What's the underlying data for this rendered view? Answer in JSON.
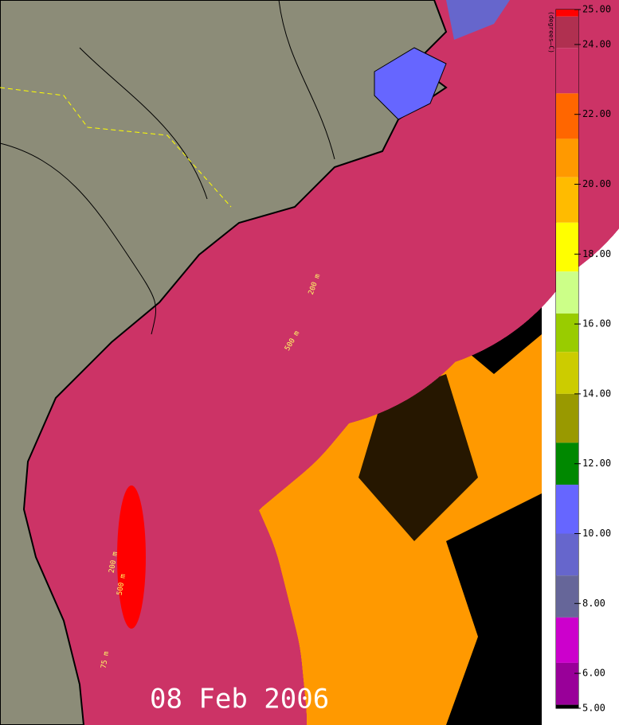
{
  "map": {
    "date": "08 Feb 2006",
    "contour_labels": [
      "200 m",
      "500 m",
      "75 m",
      "200 m",
      "500 m"
    ]
  },
  "colorbar": {
    "title": "(degrees—C)",
    "lim": [
      5,
      25
    ],
    "ticks": [
      {
        "value": 25,
        "label": "25.00"
      },
      {
        "value": 24,
        "label": "24.00"
      },
      {
        "value": 22,
        "label": "22.00"
      },
      {
        "value": 20,
        "label": "20.00"
      },
      {
        "value": 18,
        "label": "18.00"
      },
      {
        "value": 16,
        "label": "16.00"
      },
      {
        "value": 14,
        "label": "14.00"
      },
      {
        "value": 12,
        "label": "12.00"
      },
      {
        "value": 10,
        "label": "10.00"
      },
      {
        "value": 8,
        "label": "8.00"
      },
      {
        "value": 6,
        "label": "6.00"
      },
      {
        "value": 5,
        "label": "5.00"
      }
    ],
    "bins": [
      {
        "from": 24.8,
        "to": 25,
        "color": "#ff0000"
      },
      {
        "from": 23.9,
        "to": 24.8,
        "color": "#b03050"
      },
      {
        "from": 22.6,
        "to": 23.9,
        "color": "#cc3366"
      },
      {
        "from": 21.3,
        "to": 22.6,
        "color": "#ff6600"
      },
      {
        "from": 20.2,
        "to": 21.3,
        "color": "#ff9900"
      },
      {
        "from": 18.9,
        "to": 20.2,
        "color": "#ffbb00"
      },
      {
        "from": 17.5,
        "to": 18.9,
        "color": "#ffff00"
      },
      {
        "from": 16.3,
        "to": 17.5,
        "color": "#ccff88"
      },
      {
        "from": 15.2,
        "to": 16.3,
        "color": "#99cc00"
      },
      {
        "from": 14,
        "to": 15.2,
        "color": "#cccc00"
      },
      {
        "from": 12.6,
        "to": 14,
        "color": "#999900"
      },
      {
        "from": 11.4,
        "to": 12.6,
        "color": "#008800"
      },
      {
        "from": 10,
        "to": 11.4,
        "color": "#6666ff"
      },
      {
        "from": 8.8,
        "to": 10,
        "color": "#6666cc"
      },
      {
        "from": 7.6,
        "to": 8.8,
        "color": "#666699"
      },
      {
        "from": 6.3,
        "to": 7.6,
        "color": "#cc00cc"
      },
      {
        "from": 5.1,
        "to": 6.3,
        "color": "#990099"
      },
      {
        "from": 5,
        "to": 5.1,
        "color": "#000000"
      }
    ]
  }
}
